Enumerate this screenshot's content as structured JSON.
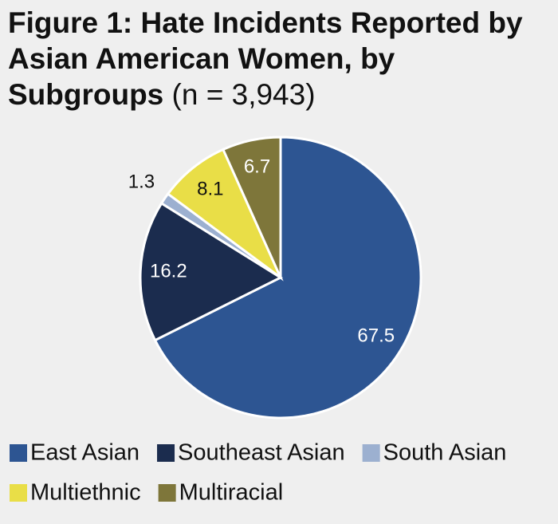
{
  "chart_data": {
    "type": "pie",
    "title": "Figure 1: Hate Incidents Reported by Asian American Women, by Subgroups",
    "subtitle": "(n = 3,943)",
    "categories": [
      "East Asian",
      "Southeast Asian",
      "South Asian",
      "Multiethnic",
      "Multiracial"
    ],
    "values": [
      67.5,
      16.2,
      1.3,
      8.1,
      6.7
    ],
    "colors": [
      "#2d5592",
      "#1b2c4e",
      "#9cb0d0",
      "#e9de47",
      "#7e763a"
    ],
    "legend": "bottom"
  }
}
